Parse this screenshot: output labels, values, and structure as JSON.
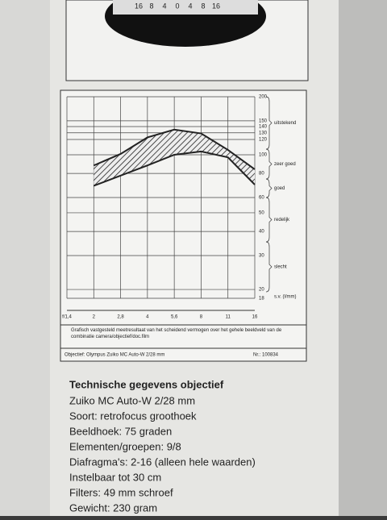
{
  "lens_scale": [
    "16",
    "8",
    "4",
    "0",
    "4",
    "8",
    "16"
  ],
  "chart_data": {
    "type": "band",
    "categories": [
      "f/1,4",
      "2",
      "2,8",
      "4",
      "5,6",
      "8",
      "11",
      "16"
    ],
    "series": [
      {
        "values": [
          null,
          88,
          101,
          123,
          135,
          129,
          106,
          84
        ]
      },
      {
        "values": [
          null,
          69,
          78,
          88,
          100,
          104,
          97,
          70
        ]
      }
    ],
    "color": "#222",
    "log_scale": true,
    "ylim": [
      18,
      200
    ],
    "yticks": [
      18,
      20,
      30,
      40,
      50,
      60,
      80,
      100,
      120,
      130,
      140,
      150,
      200
    ],
    "grid": true,
    "ratings": [
      "uitstekend",
      "zeer goed",
      "goed",
      "redelijk",
      "slecht",
      "s.v. (l/mm)"
    ]
  },
  "caption": "Grafisch vastgesteld meetresultaat van het scheidend vermogen over het gehele beeldveld van de combinatie camera/objectief/doc.film",
  "objective": "Objectief: Olympus Zuiko MC Auto-W 2/28 mm",
  "number": "Nr.: 100834",
  "specs": {
    "title": "Technische gegevens objectief",
    "lines": [
      "Zuiko MC Auto-W 2/28 mm",
      "Soort: retrofocus groothoek",
      "Beeldhoek: 75 graden",
      "Elementen/groepen: 9/8",
      "Diafragma's: 2-16 (alleen hele waarden)",
      "Instelbaar tot 30 cm",
      "Filters: 49 mm schroef",
      "Gewicht: 230 gram"
    ]
  }
}
